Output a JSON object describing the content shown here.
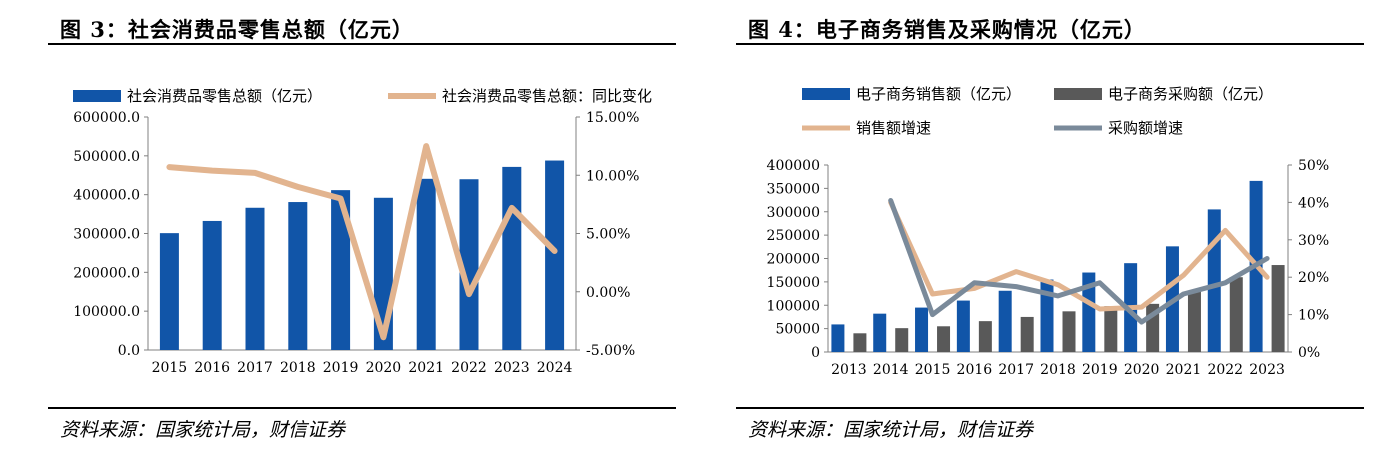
{
  "figures": [
    {
      "title": "图 3：社会消费品零售总额（亿元）",
      "source": "资料来源：国家统计局，财信证券"
    },
    {
      "title": "图 4：电子商务销售及采购情况（亿元）",
      "source": "资料来源：国家统计局，财信证券"
    }
  ],
  "chart_data": [
    {
      "type": "bar",
      "title": "",
      "categories": [
        "2015",
        "2016",
        "2017",
        "2018",
        "2019",
        "2020",
        "2021",
        "2022",
        "2023",
        "2024"
      ],
      "y_left": {
        "ticks": [
          "0.0",
          "100000.0",
          "200000.0",
          "300000.0",
          "400000.0",
          "500000.0",
          "600000.0"
        ],
        "range": [
          0,
          600000
        ]
      },
      "y_right": {
        "ticks": [
          "-5.00%",
          "0.00%",
          "5.00%",
          "10.00%",
          "15.00%"
        ],
        "range": [
          -5,
          15
        ]
      },
      "legend_position": "top",
      "grid": false,
      "series": [
        {
          "name": "社会消费品零售总额（亿元）",
          "type": "bar",
          "axis": "left",
          "color": "#1155A8",
          "values": [
            300931,
            332316,
            366262,
            380987,
            411649,
            391981,
            440823,
            439733,
            471495,
            487895
          ]
        },
        {
          "name": "社会消费品零售总额：同比变化",
          "type": "line",
          "axis": "right",
          "color": "#E2B48F",
          "values": [
            10.7,
            10.4,
            10.2,
            9.0,
            8.0,
            -3.9,
            12.5,
            -0.2,
            7.2,
            3.5
          ]
        }
      ]
    },
    {
      "type": "bar",
      "title": "",
      "categories": [
        "2013",
        "2014",
        "2015",
        "2016",
        "2017",
        "2018",
        "2019",
        "2020",
        "2021",
        "2022",
        "2023"
      ],
      "y_left": {
        "ticks": [
          "0",
          "50000",
          "100000",
          "150000",
          "200000",
          "250000",
          "300000",
          "350000",
          "400000"
        ],
        "range": [
          0,
          400000
        ]
      },
      "y_right": {
        "ticks": [
          "0%",
          "10%",
          "20%",
          "30%",
          "40%",
          "50%"
        ],
        "range": [
          0,
          50
        ]
      },
      "legend_position": "top",
      "grid": false,
      "series": [
        {
          "name": "电子商务销售额（亿元）",
          "type": "bar",
          "axis": "left",
          "color": "#1155A8",
          "values": [
            59000,
            82000,
            95000,
            110000,
            131000,
            155000,
            170000,
            190000,
            226000,
            305000,
            366000
          ]
        },
        {
          "name": "电子商务采购额（亿元）",
          "type": "bar",
          "axis": "left",
          "color": "#595959",
          "values": [
            40000,
            51000,
            55000,
            66000,
            75000,
            87000,
            98000,
            103000,
            130000,
            160000,
            186000
          ]
        },
        {
          "name": "销售额增速",
          "type": "line",
          "axis": "right",
          "color": "#E2B48F",
          "values": [
            null,
            40,
            15.5,
            17,
            21.5,
            18,
            11.5,
            12,
            20.5,
            32.5,
            20
          ]
        },
        {
          "name": "采购额增速",
          "type": "line",
          "axis": "right",
          "color": "#7A8A9A",
          "values": [
            null,
            40.5,
            10,
            18.5,
            17.5,
            15,
            18.5,
            8,
            15.5,
            18.5,
            25
          ]
        }
      ]
    }
  ]
}
